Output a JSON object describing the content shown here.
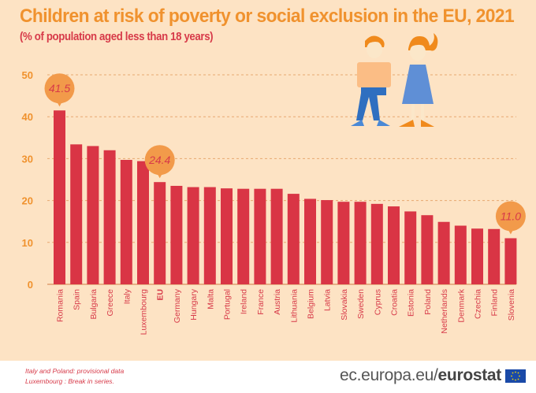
{
  "header": {
    "title": "Children at risk of poverty or social exclusion in the EU, 2021",
    "subtitle": "(% of population aged less than 18 years)"
  },
  "chart_data": {
    "type": "bar",
    "title": "Children at risk of poverty or social exclusion in the EU, 2021",
    "subtitle": "(% of population aged less than 18 years)",
    "xlabel": "",
    "ylabel": "",
    "ylim": [
      0,
      50
    ],
    "yticks": [
      0,
      10,
      20,
      30,
      40,
      50
    ],
    "grid": true,
    "categories": [
      "Romania",
      "Spain",
      "Bulgaria",
      "Greece",
      "Italy",
      "Luxembourg",
      "EU",
      "Germany",
      "Hungary",
      "Malta",
      "Portugal",
      "Ireland",
      "France",
      "Austria",
      "Lithuania",
      "Belgium",
      "Latvia",
      "Slovakia",
      "Sweden",
      "Cyprus",
      "Croatia",
      "Estonia",
      "Poland",
      "Netherlands",
      "Denmark",
      "Czechia",
      "Finland",
      "Slovenia"
    ],
    "values": [
      41.5,
      33.4,
      33.0,
      32.0,
      29.7,
      29.4,
      24.4,
      23.5,
      23.2,
      23.2,
      22.9,
      22.8,
      22.8,
      22.8,
      21.6,
      20.4,
      20.1,
      19.7,
      19.7,
      19.2,
      18.6,
      17.4,
      16.5,
      14.9,
      14.0,
      13.3,
      13.2,
      11.0
    ],
    "bold_categories": [
      "EU"
    ],
    "callouts": [
      {
        "category": "Romania",
        "label": "41.5"
      },
      {
        "category": "EU",
        "label": "24.4"
      },
      {
        "category": "Slovenia",
        "label": "11.0"
      }
    ],
    "colors": {
      "bar": "#d93545",
      "axis_text": "#f0922e",
      "category_text": "#d73a49",
      "callout": "#f29a4a",
      "callout_text": "#d73a49",
      "grid": "#e8a870"
    }
  },
  "footer": {
    "notes": [
      "Italy and Poland: provisional data",
      "Luxembourg : Break in series."
    ],
    "brand_prefix": "ec.europa.eu/",
    "brand_bold": "eurostat"
  }
}
